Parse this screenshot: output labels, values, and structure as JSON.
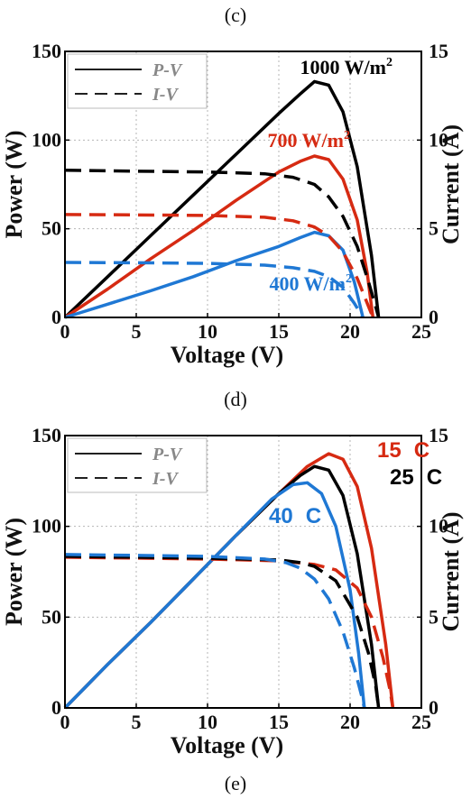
{
  "labels": {
    "top": "(c)",
    "middle": "(d)",
    "bottom": "(e)"
  },
  "chart_data": [
    {
      "type": "line",
      "panel": "(d)",
      "xlabel": "Voltage (V)",
      "ylabel": "Power (W)",
      "y2label": "Current (A)",
      "xlim": [
        0,
        25
      ],
      "ylim": [
        0,
        150
      ],
      "y2lim": [
        0,
        15
      ],
      "xticks": [
        0,
        5,
        10,
        15,
        20,
        25
      ],
      "yticks": [
        0,
        50,
        100,
        150
      ],
      "y2ticks": [
        0,
        5,
        10,
        15
      ],
      "grid": true,
      "legend": {
        "placement": "top-left",
        "entries": [
          {
            "label": "P-V",
            "style": "solid"
          },
          {
            "label": "I-V",
            "style": "dashed"
          }
        ]
      },
      "annotations": [
        {
          "base": "1000 W/m",
          "sup": "2",
          "color": "#000000"
        },
        {
          "base": "700 W/m",
          "sup": "2",
          "color": "#d62a12"
        },
        {
          "base": "400 W/m",
          "sup": "2",
          "color": "#1f78d4"
        }
      ],
      "series": [
        {
          "kind": "P-V",
          "color": "#000000",
          "axis": "left",
          "x": [
            0,
            3,
            6,
            9,
            12,
            15,
            16.5,
            17.5,
            18.5,
            19.5,
            20.5,
            21.5,
            22
          ],
          "y": [
            0,
            23,
            46,
            69,
            92,
            115,
            126,
            133,
            131,
            116,
            85,
            35,
            0
          ]
        },
        {
          "kind": "P-V",
          "color": "#d62a12",
          "axis": "left",
          "x": [
            0,
            3,
            6,
            9,
            12,
            15,
            16.5,
            17.5,
            18.5,
            19.5,
            20.5,
            21.2,
            21.6
          ],
          "y": [
            0,
            16,
            33,
            49,
            66,
            82,
            88,
            91,
            89,
            78,
            55,
            25,
            0
          ]
        },
        {
          "kind": "P-V",
          "color": "#1f78d4",
          "axis": "left",
          "x": [
            0,
            3,
            6,
            9,
            12,
            15,
            16.5,
            17.5,
            18.5,
            19.5,
            20.3,
            20.9
          ],
          "y": [
            0,
            7.5,
            15,
            23,
            32,
            40,
            45,
            48,
            46,
            38,
            20,
            0
          ]
        },
        {
          "kind": "I-V",
          "color": "#000000",
          "axis": "right",
          "x": [
            0,
            5,
            10,
            14,
            16,
            17.5,
            18.5,
            19.5,
            20.5,
            21.3,
            21.8,
            22
          ],
          "y": [
            8.3,
            8.25,
            8.2,
            8.1,
            7.9,
            7.5,
            6.8,
            5.7,
            4,
            2,
            0.6,
            0
          ]
        },
        {
          "kind": "I-V",
          "color": "#d62a12",
          "axis": "right",
          "x": [
            0,
            5,
            10,
            14,
            16,
            17.5,
            18.5,
            19.5,
            20.5,
            21.1,
            21.6
          ],
          "y": [
            5.8,
            5.78,
            5.75,
            5.65,
            5.45,
            5.1,
            4.6,
            3.7,
            2.2,
            1,
            0
          ]
        },
        {
          "kind": "I-V",
          "color": "#1f78d4",
          "axis": "right",
          "x": [
            0,
            5,
            10,
            14,
            16,
            17.5,
            18.5,
            19.5,
            20.3,
            20.9
          ],
          "y": [
            3.1,
            3.08,
            3.05,
            2.95,
            2.8,
            2.6,
            2.3,
            1.7,
            0.8,
            0
          ]
        }
      ]
    },
    {
      "type": "line",
      "panel": "(e)",
      "xlabel": "Voltage (V)",
      "ylabel": "Power (W)",
      "y2label": "Current (A)",
      "xlim": [
        0,
        25
      ],
      "ylim": [
        0,
        150
      ],
      "y2lim": [
        0,
        15
      ],
      "xticks": [
        0,
        5,
        10,
        15,
        20,
        25
      ],
      "yticks": [
        0,
        50,
        100,
        150
      ],
      "y2ticks": [
        0,
        5,
        10,
        15
      ],
      "grid": true,
      "legend": {
        "placement": "top-left",
        "entries": [
          {
            "label": "P-V",
            "style": "solid"
          },
          {
            "label": "I-V",
            "style": "dashed"
          }
        ]
      },
      "annotations": [
        {
          "num": "15",
          "unit": "C",
          "color": "#d62a12"
        },
        {
          "num": "25",
          "unit": "C",
          "color": "#000000"
        },
        {
          "num": "40",
          "unit": "C",
          "color": "#1f78d4"
        }
      ],
      "series": [
        {
          "kind": "P-V",
          "color": "#d62a12",
          "axis": "left",
          "x": [
            0,
            3,
            6,
            9,
            12,
            15,
            17,
            18.5,
            19.5,
            20.5,
            21.5,
            22.5,
            23
          ],
          "y": [
            0,
            24,
            47,
            71,
            95,
            118,
            133,
            140,
            137,
            122,
            88,
            35,
            0
          ]
        },
        {
          "kind": "P-V",
          "color": "#000000",
          "axis": "left",
          "x": [
            0,
            3,
            6,
            9,
            12,
            15,
            16.5,
            17.5,
            18.5,
            19.5,
            20.5,
            21.5,
            22
          ],
          "y": [
            0,
            24,
            47,
            71,
            95,
            118,
            128,
            133,
            131,
            117,
            85,
            35,
            0
          ]
        },
        {
          "kind": "P-V",
          "color": "#1f78d4",
          "axis": "left",
          "x": [
            0,
            3,
            6,
            9,
            12,
            14.5,
            16,
            17,
            18,
            19,
            20,
            20.6,
            21
          ],
          "y": [
            0,
            24,
            47,
            71,
            95,
            115,
            123,
            124,
            118,
            100,
            65,
            30,
            0
          ]
        },
        {
          "kind": "I-V",
          "color": "#d62a12",
          "axis": "right",
          "x": [
            0,
            5,
            10,
            15,
            17.5,
            19,
            20.5,
            21.5,
            22.3,
            22.8,
            23
          ],
          "y": [
            8.3,
            8.25,
            8.2,
            8.1,
            7.9,
            7.6,
            6.6,
            5,
            2.8,
            1,
            0
          ]
        },
        {
          "kind": "I-V",
          "color": "#000000",
          "axis": "right",
          "x": [
            0,
            5,
            10,
            15,
            16.5,
            17.5,
            19,
            20.5,
            21.3,
            21.8,
            22
          ],
          "y": [
            8.35,
            8.3,
            8.25,
            8.15,
            8,
            7.8,
            7,
            5,
            3,
            1.2,
            0
          ]
        },
        {
          "kind": "I-V",
          "color": "#1f78d4",
          "axis": "right",
          "x": [
            0,
            5,
            10,
            14,
            15.5,
            16.5,
            17.5,
            18.5,
            19.5,
            20.3,
            20.8,
            21
          ],
          "y": [
            8.45,
            8.4,
            8.35,
            8.2,
            8,
            7.7,
            7.1,
            6,
            4.2,
            2.2,
            0.7,
            0
          ]
        }
      ]
    }
  ]
}
